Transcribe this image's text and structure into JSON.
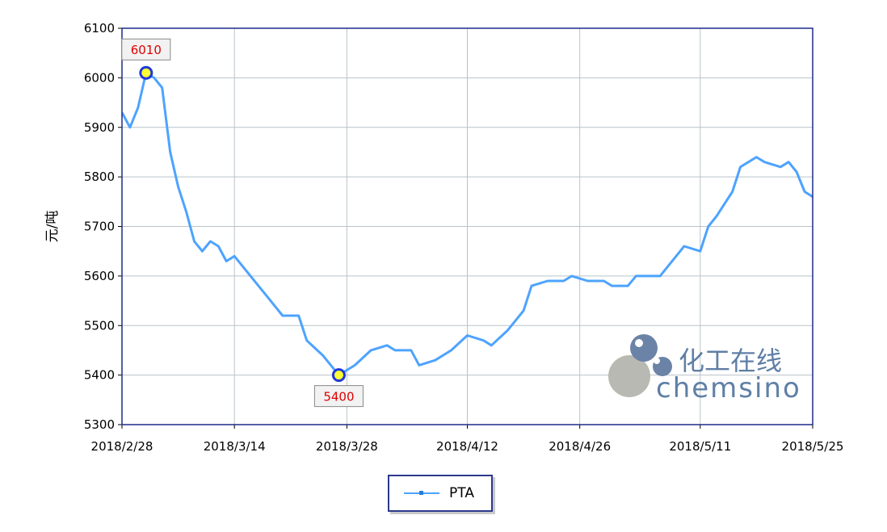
{
  "chart_data": {
    "type": "line",
    "ylabel": "元/吨",
    "ylim": [
      5300,
      6100
    ],
    "yticks": [
      5300,
      5400,
      5500,
      5600,
      5700,
      5800,
      5900,
      6000,
      6100
    ],
    "xlim": [
      "2018/2/28",
      "2018/5/25"
    ],
    "xticks": [
      "2018/2/28",
      "2018/3/14",
      "2018/3/28",
      "2018/4/12",
      "2018/4/26",
      "2018/5/11",
      "2018/5/25"
    ],
    "grid": true,
    "legend_position": "bottom-center",
    "series": [
      {
        "name": "PTA",
        "color": "#4da3ff",
        "points": [
          [
            "2018/2/28",
            5930
          ],
          [
            "2018/3/1",
            5900
          ],
          [
            "2018/3/2",
            5940
          ],
          [
            "2018/3/3",
            6010
          ],
          [
            "2018/3/4",
            6000
          ],
          [
            "2018/3/5",
            5980
          ],
          [
            "2018/3/6",
            5850
          ],
          [
            "2018/3/7",
            5780
          ],
          [
            "2018/3/8",
            5730
          ],
          [
            "2018/3/9",
            5670
          ],
          [
            "2018/3/10",
            5650
          ],
          [
            "2018/3/11",
            5670
          ],
          [
            "2018/3/12",
            5660
          ],
          [
            "2018/3/13",
            5630
          ],
          [
            "2018/3/14",
            5640
          ],
          [
            "2018/3/16",
            5600
          ],
          [
            "2018/3/18",
            5560
          ],
          [
            "2018/3/20",
            5520
          ],
          [
            "2018/3/22",
            5520
          ],
          [
            "2018/3/23",
            5470
          ],
          [
            "2018/3/25",
            5440
          ],
          [
            "2018/3/27",
            5400
          ],
          [
            "2018/3/29",
            5420
          ],
          [
            "2018/3/31",
            5450
          ],
          [
            "2018/4/2",
            5460
          ],
          [
            "2018/4/3",
            5450
          ],
          [
            "2018/4/5",
            5450
          ],
          [
            "2018/4/6",
            5420
          ],
          [
            "2018/4/8",
            5430
          ],
          [
            "2018/4/10",
            5450
          ],
          [
            "2018/4/12",
            5480
          ],
          [
            "2018/4/14",
            5470
          ],
          [
            "2018/4/15",
            5460
          ],
          [
            "2018/4/17",
            5490
          ],
          [
            "2018/4/19",
            5530
          ],
          [
            "2018/4/20",
            5580
          ],
          [
            "2018/4/22",
            5590
          ],
          [
            "2018/4/24",
            5590
          ],
          [
            "2018/4/25",
            5600
          ],
          [
            "2018/4/27",
            5590
          ],
          [
            "2018/4/29",
            5590
          ],
          [
            "2018/4/30",
            5580
          ],
          [
            "2018/5/2",
            5580
          ],
          [
            "2018/5/3",
            5600
          ],
          [
            "2018/5/5",
            5600
          ],
          [
            "2018/5/6",
            5600
          ],
          [
            "2018/5/8",
            5640
          ],
          [
            "2018/5/9",
            5660
          ],
          [
            "2018/5/11",
            5650
          ],
          [
            "2018/5/12",
            5700
          ],
          [
            "2018/5/13",
            5720
          ],
          [
            "2018/5/15",
            5770
          ],
          [
            "2018/5/16",
            5820
          ],
          [
            "2018/5/18",
            5840
          ],
          [
            "2018/5/19",
            5830
          ],
          [
            "2018/5/21",
            5820
          ],
          [
            "2018/5/22",
            5830
          ],
          [
            "2018/5/23",
            5810
          ],
          [
            "2018/5/24",
            5770
          ],
          [
            "2018/5/25",
            5760
          ],
          [
            "2018/5/26",
            5780
          ]
        ]
      }
    ],
    "annotations": [
      {
        "label": "6010",
        "x": "2018/3/3",
        "y": 6010,
        "placement": "above"
      },
      {
        "label": "5400",
        "x": "2018/3/27",
        "y": 5400,
        "placement": "below"
      }
    ],
    "watermark": {
      "cn": "化工在线",
      "en": "chemsino"
    }
  },
  "legend": {
    "label": "PTA"
  }
}
